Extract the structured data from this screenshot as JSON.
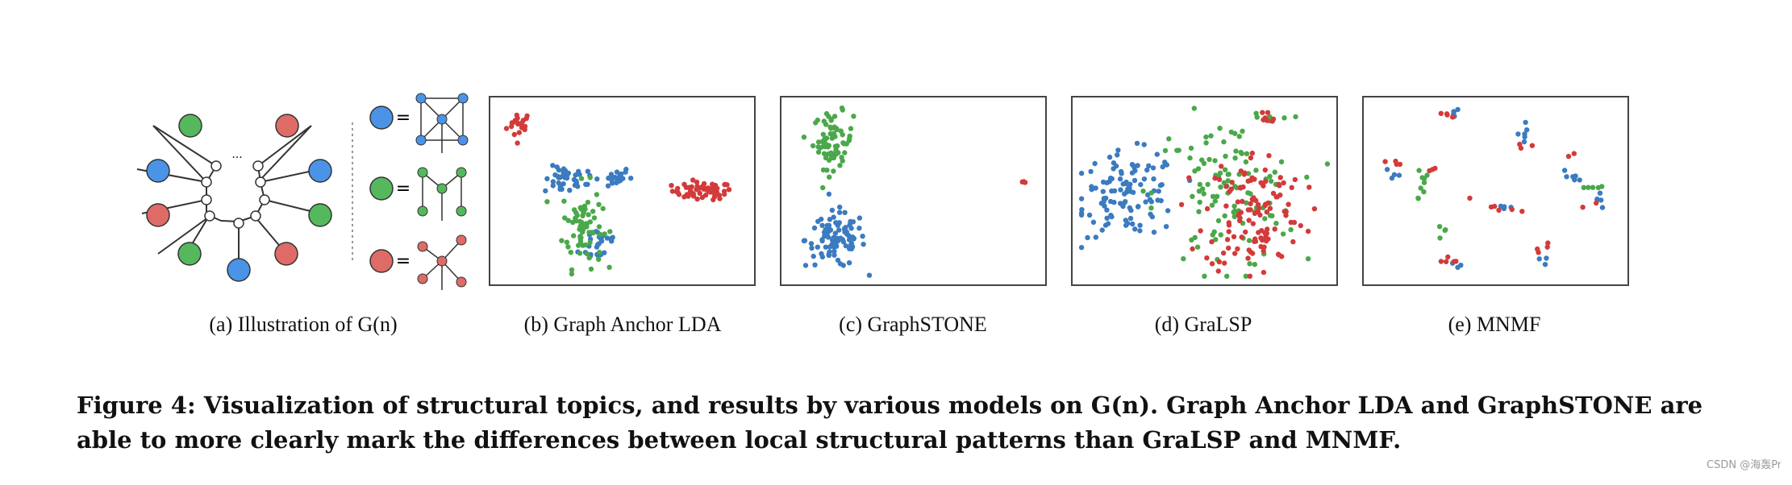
{
  "figure": {
    "colors": {
      "blue": "#3b7bbf",
      "green": "#4aa84a",
      "red": "#d33a3a",
      "node_blue": "#4b93e6",
      "node_green": "#55b85c",
      "node_red": "#df6b66"
    },
    "illustration": {
      "ellipsis": "..."
    },
    "subcaptions": [
      "(a)  Illustration of G(n)",
      "(b)  Graph Anchor LDA",
      "(c)  GraphSTONE",
      "(d)  GraLSP",
      "(e)  MNMF"
    ],
    "caption_lines": [
      "Figure 4: Visualization of structural topics, and results by various models on G(n). Graph Anchor LDA and GraphSTONE are",
      "able to more clearly mark the differences between local structural patterns than GraLSP and MNMF."
    ]
  },
  "chart_data": [
    {
      "type": "scatter",
      "title": "(b) Graph Anchor LDA",
      "xlim": [
        0,
        100
      ],
      "ylim": [
        0,
        100
      ],
      "series": [
        {
          "name": "red",
          "clusters": [
            {
              "cx": 9,
              "cy": 88,
              "sx": 2.5,
              "sy": 4,
              "n": 20
            },
            {
              "cx": 82,
              "cy": 50,
              "sx": 6,
              "sy": 2.5,
              "n": 55
            }
          ]
        },
        {
          "name": "blue",
          "clusters": [
            {
              "cx": 27,
              "cy": 56,
              "sx": 4,
              "sy": 4,
              "n": 35
            },
            {
              "cx": 44,
              "cy": 58,
              "sx": 5,
              "sy": 3,
              "n": 25
            },
            {
              "cx": 41,
              "cy": 20,
              "sx": 4,
              "sy": 6,
              "n": 25
            }
          ]
        },
        {
          "name": "green",
          "clusters": [
            {
              "cx": 34,
              "cy": 30,
              "sx": 4,
              "sy": 12,
              "n": 70
            }
          ]
        }
      ]
    },
    {
      "type": "scatter",
      "title": "(c) GraphSTONE",
      "xlim": [
        0,
        100
      ],
      "ylim": [
        0,
        100
      ],
      "series": [
        {
          "name": "green",
          "clusters": [
            {
              "cx": 18,
              "cy": 79,
              "sx": 4,
              "sy": 8,
              "n": 70
            }
          ]
        },
        {
          "name": "blue",
          "clusters": [
            {
              "cx": 19,
              "cy": 22,
              "sx": 6,
              "sy": 8,
              "n": 95
            }
          ]
        },
        {
          "name": "red",
          "clusters": [
            {
              "cx": 94,
              "cy": 53,
              "sx": 0.8,
              "sy": 3,
              "n": 3
            }
          ]
        }
      ]
    },
    {
      "type": "scatter",
      "title": "(d) GraLSP",
      "xlim": [
        0,
        100
      ],
      "ylim": [
        0,
        100
      ],
      "series": [
        {
          "name": "blue",
          "clusters": [
            {
              "cx": 20,
              "cy": 48,
              "sx": 10,
              "sy": 12,
              "n": 110
            }
          ]
        },
        {
          "name": "green",
          "clusters": [
            {
              "cx": 58,
              "cy": 48,
              "sx": 14,
              "sy": 22,
              "n": 110
            },
            {
              "cx": 75,
              "cy": 92,
              "sx": 4,
              "sy": 3,
              "n": 8
            }
          ]
        },
        {
          "name": "red",
          "clusters": [
            {
              "cx": 70,
              "cy": 38,
              "sx": 10,
              "sy": 18,
              "n": 120
            },
            {
              "cx": 74,
              "cy": 93,
              "sx": 3,
              "sy": 3,
              "n": 8
            }
          ]
        }
      ]
    },
    {
      "type": "scatter",
      "title": "(e) MNMF",
      "xlim": [
        0,
        100
      ],
      "ylim": [
        0,
        100
      ],
      "series": [
        {
          "name": "blue",
          "clusters": [
            {
              "cx": 33,
              "cy": 94,
              "sx": 3,
              "sy": 1.2,
              "n": 5
            },
            {
              "cx": 60,
              "cy": 84,
              "sx": 1.2,
              "sy": 3,
              "n": 6
            },
            {
              "cx": 8,
              "cy": 58,
              "sx": 1.5,
              "sy": 2.5,
              "n": 4
            },
            {
              "cx": 53,
              "cy": 40,
              "sx": 2,
              "sy": 1.2,
              "n": 4
            },
            {
              "cx": 80,
              "cy": 58,
              "sx": 2,
              "sy": 2.5,
              "n": 6
            },
            {
              "cx": 91,
              "cy": 45,
              "sx": 1.5,
              "sy": 2.5,
              "n": 5
            },
            {
              "cx": 68,
              "cy": 10,
              "sx": 1.2,
              "sy": 1.2,
              "n": 3
            },
            {
              "cx": 35,
              "cy": 8,
              "sx": 1.2,
              "sy": 1.5,
              "n": 3
            }
          ]
        },
        {
          "name": "green",
          "clusters": [
            {
              "cx": 22,
              "cy": 56,
              "sx": 1.5,
              "sy": 3,
              "n": 6
            },
            {
              "cx": 18,
              "cy": 48,
              "sx": 1.5,
              "sy": 1.5,
              "n": 3
            },
            {
              "cx": 28,
              "cy": 26,
              "sx": 1.5,
              "sy": 2,
              "n": 4
            },
            {
              "cx": 90,
              "cy": 52,
              "sx": 2.5,
              "sy": 1,
              "n": 5
            }
          ]
        },
        {
          "name": "red",
          "clusters": [
            {
              "cx": 30,
              "cy": 94,
              "sx": 2,
              "sy": 1.2,
              "n": 4
            },
            {
              "cx": 62,
              "cy": 76,
              "sx": 1.5,
              "sy": 1.5,
              "n": 3
            },
            {
              "cx": 8,
              "cy": 65,
              "sx": 3,
              "sy": 1.5,
              "n": 4
            },
            {
              "cx": 22,
              "cy": 64,
              "sx": 2,
              "sy": 1.5,
              "n": 3
            },
            {
              "cx": 56,
              "cy": 40,
              "sx": 4,
              "sy": 2,
              "n": 5
            },
            {
              "cx": 68,
              "cy": 18,
              "sx": 2,
              "sy": 1.5,
              "n": 4
            },
            {
              "cx": 80,
              "cy": 70,
              "sx": 1.5,
              "sy": 1.5,
              "n": 2
            },
            {
              "cx": 30,
              "cy": 10,
              "sx": 4,
              "sy": 2,
              "n": 5
            },
            {
              "cx": 88,
              "cy": 40,
              "sx": 1.5,
              "sy": 1.5,
              "n": 2
            },
            {
              "cx": 39,
              "cy": 46,
              "sx": 1,
              "sy": 1,
              "n": 1
            }
          ]
        }
      ]
    }
  ]
}
